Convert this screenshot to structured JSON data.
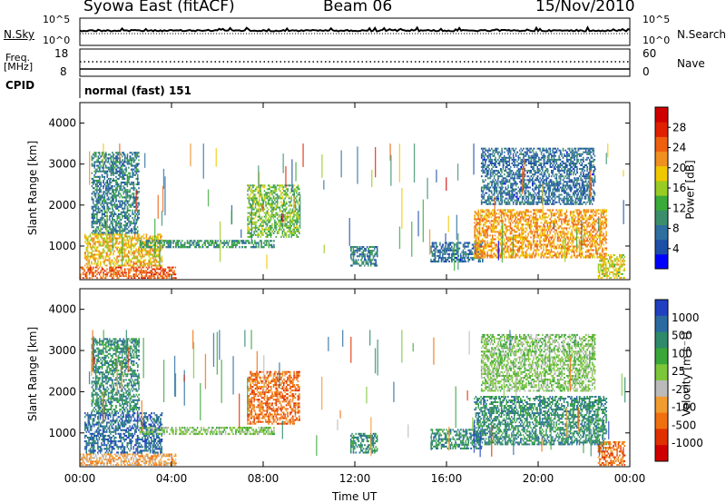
{
  "header": {
    "station": "Syowa East (fitACF)",
    "beam": "Beam 06",
    "date": "15/Nov/2010"
  },
  "panels": {
    "nsky": {
      "left_label": "N.Sky",
      "right_label": "N.Search",
      "left_ticks": [
        "10^5",
        "10^0"
      ],
      "right_ticks": [
        "10^5",
        "10^0"
      ]
    },
    "freq": {
      "left_label_top": "Freq.",
      "left_label_unit": "[MHz]",
      "right_label": "Nave",
      "left_ticks": [
        "18",
        "8"
      ],
      "right_ticks": [
        "60",
        "0"
      ]
    },
    "cpid": {
      "label": "CPID",
      "value": "normal (fast) 151"
    }
  },
  "x_axis": {
    "label": "Time UT",
    "ticks": [
      "00:00",
      "04:00",
      "08:00",
      "12:00",
      "16:00",
      "20:00",
      "00:00"
    ]
  },
  "colors": {
    "power_scale": [
      "#0000ff",
      "#1e4fa8",
      "#2e6fa0",
      "#3b8e6b",
      "#3aaa3a",
      "#99cc22",
      "#f0c800",
      "#f09020",
      "#ee6010",
      "#e02000",
      "#d00000"
    ],
    "velocity_scale": [
      "#2040c0",
      "#2a6aa0",
      "#2e8a6a",
      "#3aa63a",
      "#7cc63a",
      "#bbbbbb",
      "#f09c30",
      "#f07010",
      "#e03000",
      "#d00000"
    ]
  },
  "chart_data": [
    {
      "type": "heatmap",
      "title": "Power",
      "ylabel": "Slant Range [km]",
      "xlabel": "",
      "x_range_hours": [
        0,
        24
      ],
      "ylim": [
        180,
        4500
      ],
      "yticks": [
        1000,
        2000,
        3000,
        4000
      ],
      "colorbar": {
        "label": "Power [dB]",
        "range": [
          0,
          32
        ],
        "ticks": [
          4,
          8,
          12,
          16,
          20,
          24,
          28
        ]
      },
      "regions": [
        {
          "t": [
            0.2,
            3.6
          ],
          "r": [
            500,
            1300
          ],
          "v": 20
        },
        {
          "t": [
            0.5,
            2.6
          ],
          "r": [
            1300,
            3300
          ],
          "v": 8
        },
        {
          "t": [
            0.0,
            4.2
          ],
          "r": [
            200,
            500
          ],
          "v": 26
        },
        {
          "t": [
            2.6,
            8.5
          ],
          "r": [
            950,
            1150
          ],
          "v": 10
        },
        {
          "t": [
            7.3,
            9.6
          ],
          "r": [
            1200,
            2500
          ],
          "v": 14
        },
        {
          "t": [
            11.8,
            13.0
          ],
          "r": [
            500,
            1000
          ],
          "v": 8
        },
        {
          "t": [
            15.3,
            17.6
          ],
          "r": [
            600,
            1100
          ],
          "v": 6
        },
        {
          "t": [
            17.2,
            23.0
          ],
          "r": [
            700,
            1900
          ],
          "v": 22
        },
        {
          "t": [
            17.5,
            22.5
          ],
          "r": [
            2000,
            3400
          ],
          "v": 6
        },
        {
          "t": [
            22.6,
            23.8
          ],
          "r": [
            200,
            800
          ],
          "v": 18
        }
      ]
    },
    {
      "type": "heatmap",
      "title": "Velocity",
      "ylabel": "Slant Range [km]",
      "xlabel": "Time UT",
      "x_range_hours": [
        0,
        24
      ],
      "ylim": [
        180,
        4500
      ],
      "yticks": [
        1000,
        2000,
        3000,
        4000
      ],
      "colorbar": {
        "label": "Velocity [m s⁻¹]",
        "ticks": [
          "1000",
          "500",
          "100",
          "25",
          "-25",
          "-100",
          "-500",
          "-1000"
        ]
      },
      "regions": [
        {
          "t": [
            0.2,
            3.6
          ],
          "r": [
            500,
            1500
          ],
          "v": 500
        },
        {
          "t": [
            0.5,
            2.6
          ],
          "r": [
            1500,
            3300
          ],
          "v": 100
        },
        {
          "t": [
            0.0,
            4.2
          ],
          "r": [
            200,
            500
          ],
          "v": -100
        },
        {
          "t": [
            2.6,
            8.5
          ],
          "r": [
            950,
            1150
          ],
          "v": 0
        },
        {
          "t": [
            7.3,
            9.6
          ],
          "r": [
            1200,
            2500
          ],
          "v": -500
        },
        {
          "t": [
            11.8,
            13.0
          ],
          "r": [
            500,
            1000
          ],
          "v": 100
        },
        {
          "t": [
            15.3,
            17.6
          ],
          "r": [
            600,
            1100
          ],
          "v": 300
        },
        {
          "t": [
            17.2,
            23.0
          ],
          "r": [
            700,
            1900
          ],
          "v": 200
        },
        {
          "t": [
            17.5,
            22.5
          ],
          "r": [
            2000,
            3400
          ],
          "v": 0
        },
        {
          "t": [
            22.6,
            23.8
          ],
          "r": [
            200,
            800
          ],
          "v": -500
        }
      ]
    }
  ]
}
